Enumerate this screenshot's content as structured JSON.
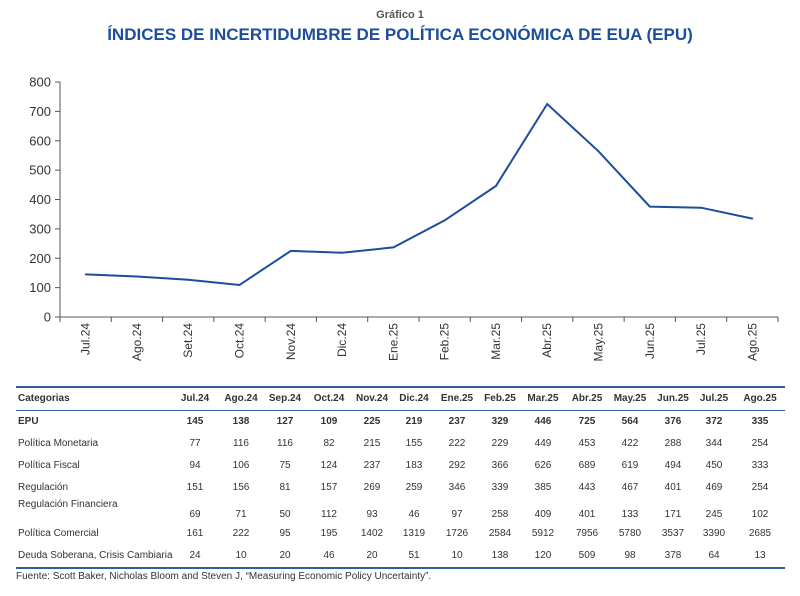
{
  "header": {
    "subtitle": "Gráfico 1",
    "title": "ÍNDICES DE INCERTIDUMBRE DE POLÍTICA ECONÓMICA DE EUA (EPU)"
  },
  "chart_data": {
    "type": "line",
    "title": "ÍNDICES DE INCERTIDUMBRE DE POLÍTICA ECONÓMICA DE EUA (EPU)",
    "xlabel": "",
    "ylabel": "",
    "categories": [
      "Jul.24",
      "Ago.24",
      "Set.24",
      "Oct.24",
      "Nov.24",
      "Dic.24",
      "Ene.25",
      "Feb.25",
      "Mar.25",
      "Abr.25",
      "May.25",
      "Jun.25",
      "Jul.25",
      "Ago.25"
    ],
    "series": [
      {
        "name": "EPU",
        "values": [
          145,
          138,
          127,
          109,
          225,
          219,
          237,
          329,
          446,
          725,
          564,
          376,
          372,
          335
        ],
        "color": "#1c4e9c"
      }
    ],
    "ylim": [
      0,
      800
    ],
    "yticks": [
      "0",
      "100",
      "200",
      "300",
      "400",
      "500",
      "600",
      "700",
      "800"
    ],
    "ytick_values": [
      0,
      100,
      200,
      300,
      400,
      500,
      600,
      700,
      800
    ],
    "grid": false,
    "legend": "none"
  },
  "table": {
    "header_label": "Categorias",
    "columns": [
      "Jul.24",
      "Ago.24",
      "Sep.24",
      "Oct.24",
      "Nov.24",
      "Dic.24",
      "Ene.25",
      "Feb.25",
      "Mar.25",
      "Abr.25",
      "May.25",
      "Jun.25",
      "Jul.25",
      "Ago.25"
    ],
    "rows": [
      {
        "label": "EPU",
        "values": [
          "145",
          "138",
          "127",
          "109",
          "225",
          "219",
          "237",
          "329",
          "446",
          "725",
          "564",
          "376",
          "372",
          "335"
        ]
      },
      {
        "label": "Política Monetaria",
        "values": [
          "77",
          "116",
          "116",
          "82",
          "215",
          "155",
          "222",
          "229",
          "449",
          "453",
          "422",
          "288",
          "344",
          "254"
        ]
      },
      {
        "label": "Política Fiscal",
        "values": [
          "94",
          "106",
          "75",
          "124",
          "237",
          "183",
          "292",
          "366",
          "626",
          "689",
          "619",
          "494",
          "450",
          "333"
        ]
      },
      {
        "label": "Regulación",
        "values": [
          "151",
          "156",
          "81",
          "157",
          "269",
          "259",
          "346",
          "339",
          "385",
          "443",
          "467",
          "401",
          "469",
          "254"
        ]
      },
      {
        "label": "Regulación Financiera",
        "values": [
          "69",
          "71",
          "50",
          "112",
          "93",
          "46",
          "97",
          "258",
          "409",
          "401",
          "133",
          "171",
          "245",
          "102"
        ]
      },
      {
        "label": "Política Comercial",
        "values": [
          "161",
          "222",
          "95",
          "195",
          "1402",
          "1319",
          "1726",
          "2584",
          "5912",
          "7956",
          "5780",
          "3537",
          "3390",
          "2685"
        ]
      },
      {
        "label": "Deuda Soberana, Crisis Cambiaria",
        "values": [
          "24",
          "10",
          "20",
          "46",
          "20",
          "51",
          "10",
          "138",
          "120",
          "509",
          "98",
          "378",
          "64",
          "13"
        ]
      }
    ]
  },
  "footer": {
    "source": "Fuente: Scott Baker, Nicholas Bloom and Steven J, “Measuring Economic Policy Uncertainty”."
  }
}
